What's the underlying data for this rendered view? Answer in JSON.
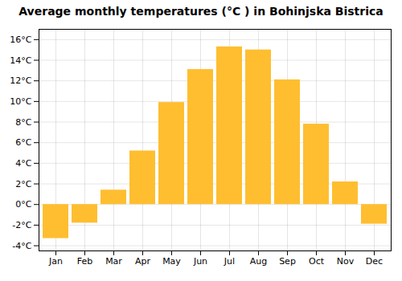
{
  "chart_data": {
    "type": "bar",
    "title": "Average monthly temperatures (°C ) in Bohinjska Bistrica",
    "categories": [
      "Jan",
      "Feb",
      "Mar",
      "Apr",
      "May",
      "Jun",
      "Jul",
      "Aug",
      "Sep",
      "Oct",
      "Nov",
      "Dec"
    ],
    "values": [
      -3.3,
      -1.8,
      1.4,
      5.2,
      9.9,
      13.1,
      15.3,
      15.0,
      12.1,
      7.8,
      2.2,
      -1.9
    ],
    "color": "#FFBE30",
    "ylim": [
      -4.5,
      17.0
    ],
    "yticks": [
      {
        "value": -4,
        "label": "-4°C"
      },
      {
        "value": -2,
        "label": "-2°C"
      },
      {
        "value": 0,
        "label": "0°C"
      },
      {
        "value": 2,
        "label": "2°C"
      },
      {
        "value": 4,
        "label": "4°C"
      },
      {
        "value": 6,
        "label": "6°C"
      },
      {
        "value": 8,
        "label": "8°C"
      },
      {
        "value": 10,
        "label": "10°C"
      },
      {
        "value": 12,
        "label": "12°C"
      },
      {
        "value": 14,
        "label": "14°C"
      },
      {
        "value": 16,
        "label": "16°C"
      }
    ],
    "grid": true
  }
}
